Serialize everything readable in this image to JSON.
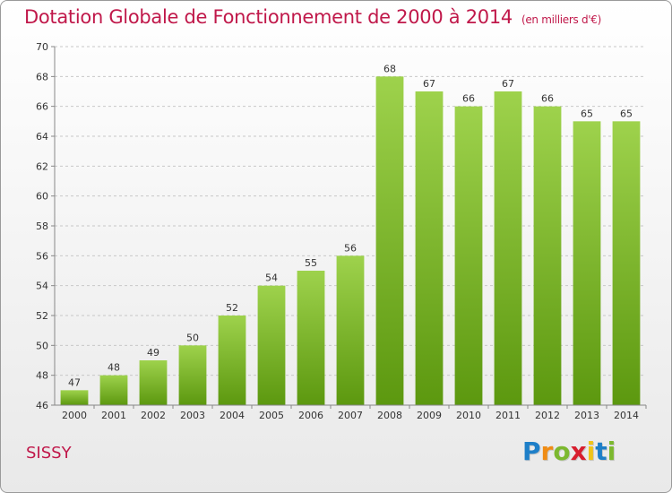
{
  "title": "Dotation Globale de Fonctionnement de 2000 à 2014",
  "unit_note": "(en milliers d'€)",
  "commune": "SISSY",
  "logo": {
    "text": "Proxiti",
    "letters": [
      {
        "ch": "P",
        "color": "#1e7fc8"
      },
      {
        "ch": "r",
        "color": "#f08c14"
      },
      {
        "ch": "o",
        "color": "#7cb82f"
      },
      {
        "ch": "x",
        "color": "#d81e2e"
      },
      {
        "ch": "i",
        "color": "#f0c419"
      },
      {
        "ch": "t",
        "color": "#1e7fc8"
      },
      {
        "ch": "i",
        "color": "#7cb82f"
      }
    ]
  },
  "colors": {
    "title": "#c0184a",
    "bar_light": "#9ed24c",
    "bar_dark": "#5c980f",
    "grid": "#c8c8c8",
    "axis_text": "#333333"
  },
  "chart_data": {
    "type": "bar",
    "categories": [
      "2000",
      "2001",
      "2002",
      "2003",
      "2004",
      "2005",
      "2006",
      "2007",
      "2008",
      "2009",
      "2010",
      "2011",
      "2012",
      "2013",
      "2014"
    ],
    "values": [
      47,
      48,
      49,
      50,
      52,
      54,
      55,
      56,
      68,
      67,
      66,
      67,
      66,
      65,
      65
    ],
    "ylim": [
      46,
      70
    ],
    "yticks": [
      46,
      48,
      50,
      52,
      54,
      56,
      58,
      60,
      62,
      64,
      66,
      68,
      70
    ],
    "grid": "horizontal dashed"
  }
}
